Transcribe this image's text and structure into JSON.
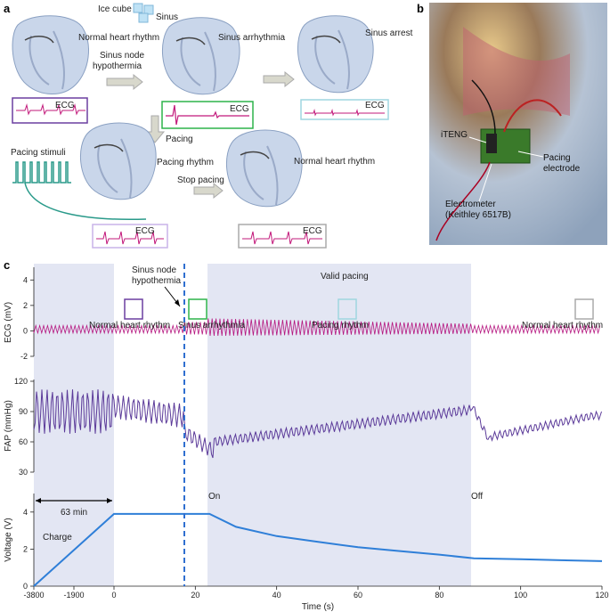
{
  "panel_labels": {
    "a": "a",
    "b": "b",
    "c": "c"
  },
  "panel_a": {
    "ice_cube": "Ice cube",
    "sinus": "Sinus",
    "normal_heart_rhythm_1": "Normal heart rhythm",
    "sinus_node_hypothermia_l1": "Sinus node",
    "sinus_node_hypothermia_l2": "hypothermia",
    "sinus_arrhythmia": "Sinus arrhythmia",
    "sinus_arrest": "Sinus arrest",
    "ecg": "ECG",
    "pacing": "Pacing",
    "pacing_stimuli": "Pacing stimuli",
    "pacing_rhythm": "Pacing rhythm",
    "stop_pacing": "Stop pacing",
    "normal_heart_rhythm_2": "Normal heart rhythm",
    "colors": {
      "box1": "#6b3fa0",
      "box2": "#2db34a",
      "box3": "#9fd6e0",
      "box4": "#c9b3e8",
      "box5": "#aaaaaa",
      "ecg": "#c2187a",
      "stimuli": "#2a9a8a"
    }
  },
  "panel_b": {
    "iteng": "iTENG",
    "pacing_electrode_l1": "Pacing",
    "pacing_electrode_l2": "electrode",
    "electrometer_l1": "Electrometer",
    "electrometer_l2": "(Keithley 6517B)"
  },
  "chart_data": [
    {
      "type": "line",
      "ylabel": "ECG (mV)",
      "ylim": [
        -2,
        5
      ],
      "yticks": [
        "-2",
        "0",
        "2",
        "4"
      ],
      "annotations": {
        "sinus_node_l1": "Sinus node",
        "sinus_node_l2": "hypothermia",
        "valid_pacing": "Valid pacing",
        "normal_heart_rhythm_1": "Normal heart rhythm",
        "sinus_arrhythmia": "Sinus arrhythmia",
        "pacing_rhythm": "Pacing rhythm",
        "normal_heart_rhythm_2": "Normal heart rhythm"
      },
      "color": "#b5157f"
    },
    {
      "type": "line",
      "ylabel": "FAP (mmHg)",
      "ylim": [
        30,
        120
      ],
      "yticks": [
        "30",
        "60",
        "90",
        "120"
      ],
      "color": "#5b3a99"
    },
    {
      "type": "line",
      "ylabel": "Voltage (V)",
      "xlabel": "Time (s)",
      "ylim": [
        0,
        5
      ],
      "yticks": [
        "0",
        "2",
        "4"
      ],
      "xticks": [
        "-3800",
        "-1900",
        "0",
        "20",
        "40",
        "60",
        "80",
        "100",
        "120"
      ],
      "annotations": {
        "duration": "63 min",
        "charge": "Charge",
        "on": "On",
        "off": "Off"
      },
      "series": [
        {
          "x": [
            -3800,
            0
          ],
          "y": [
            0,
            3.9
          ]
        },
        {
          "x": [
            0,
            23.5,
            30,
            40,
            50,
            60,
            70,
            80,
            88.5,
            100,
            110,
            120
          ],
          "y": [
            3.9,
            3.9,
            3.2,
            2.7,
            2.4,
            2.1,
            1.9,
            1.7,
            1.5,
            1.45,
            1.4,
            1.35
          ]
        }
      ],
      "color": "#2f7fd8"
    }
  ]
}
